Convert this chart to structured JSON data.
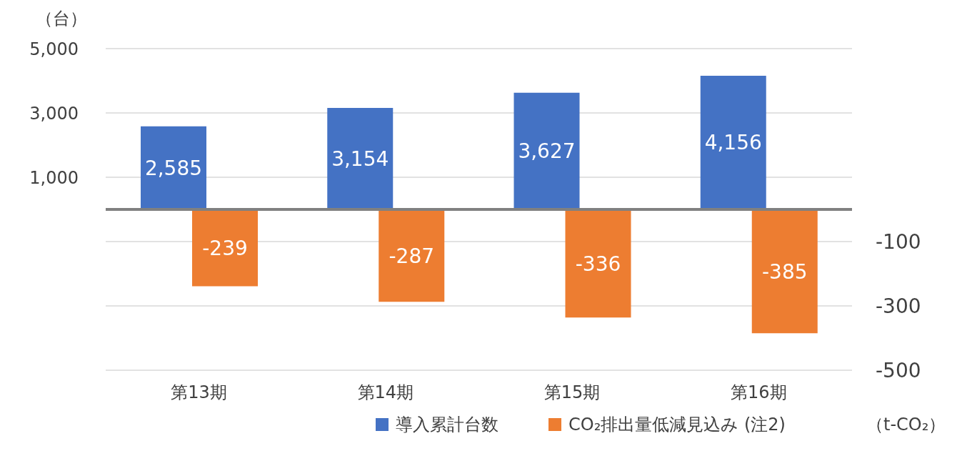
{
  "chart_data": {
    "type": "bar",
    "categories": [
      "第13期",
      "第14期",
      "第15期",
      "第16期"
    ],
    "series": [
      {
        "name": "導入累計台数",
        "color": "#4472c4",
        "values": [
          2585,
          3154,
          3627,
          4156
        ],
        "value_labels": [
          "2,585",
          "3,154",
          "3,627",
          "4,156"
        ]
      },
      {
        "name": "CO₂排出量低減見込み (注2)",
        "color": "#ed7d31",
        "values": [
          -239,
          -287,
          -336,
          -385
        ],
        "value_labels": [
          "-239",
          "-287",
          "-336",
          "-385"
        ],
        "axis": "y2"
      }
    ],
    "ylabel": "（台）",
    "y2label": "（t-CO₂）",
    "ylim": [
      -5000,
      5000
    ],
    "yticks": [
      {
        "value": -5000,
        "label": null
      },
      {
        "value": -3000,
        "label": null
      },
      {
        "value": -1000,
        "label": null
      },
      {
        "value": 1000,
        "label": "1,000"
      },
      {
        "value": 3000,
        "label": "3,000"
      },
      {
        "value": 5000,
        "label": "5,000"
      }
    ],
    "y2lim": [
      -500,
      500
    ],
    "y2ticks": [
      -500,
      -300,
      -100
    ],
    "grid": "y",
    "legend": "bottom"
  }
}
